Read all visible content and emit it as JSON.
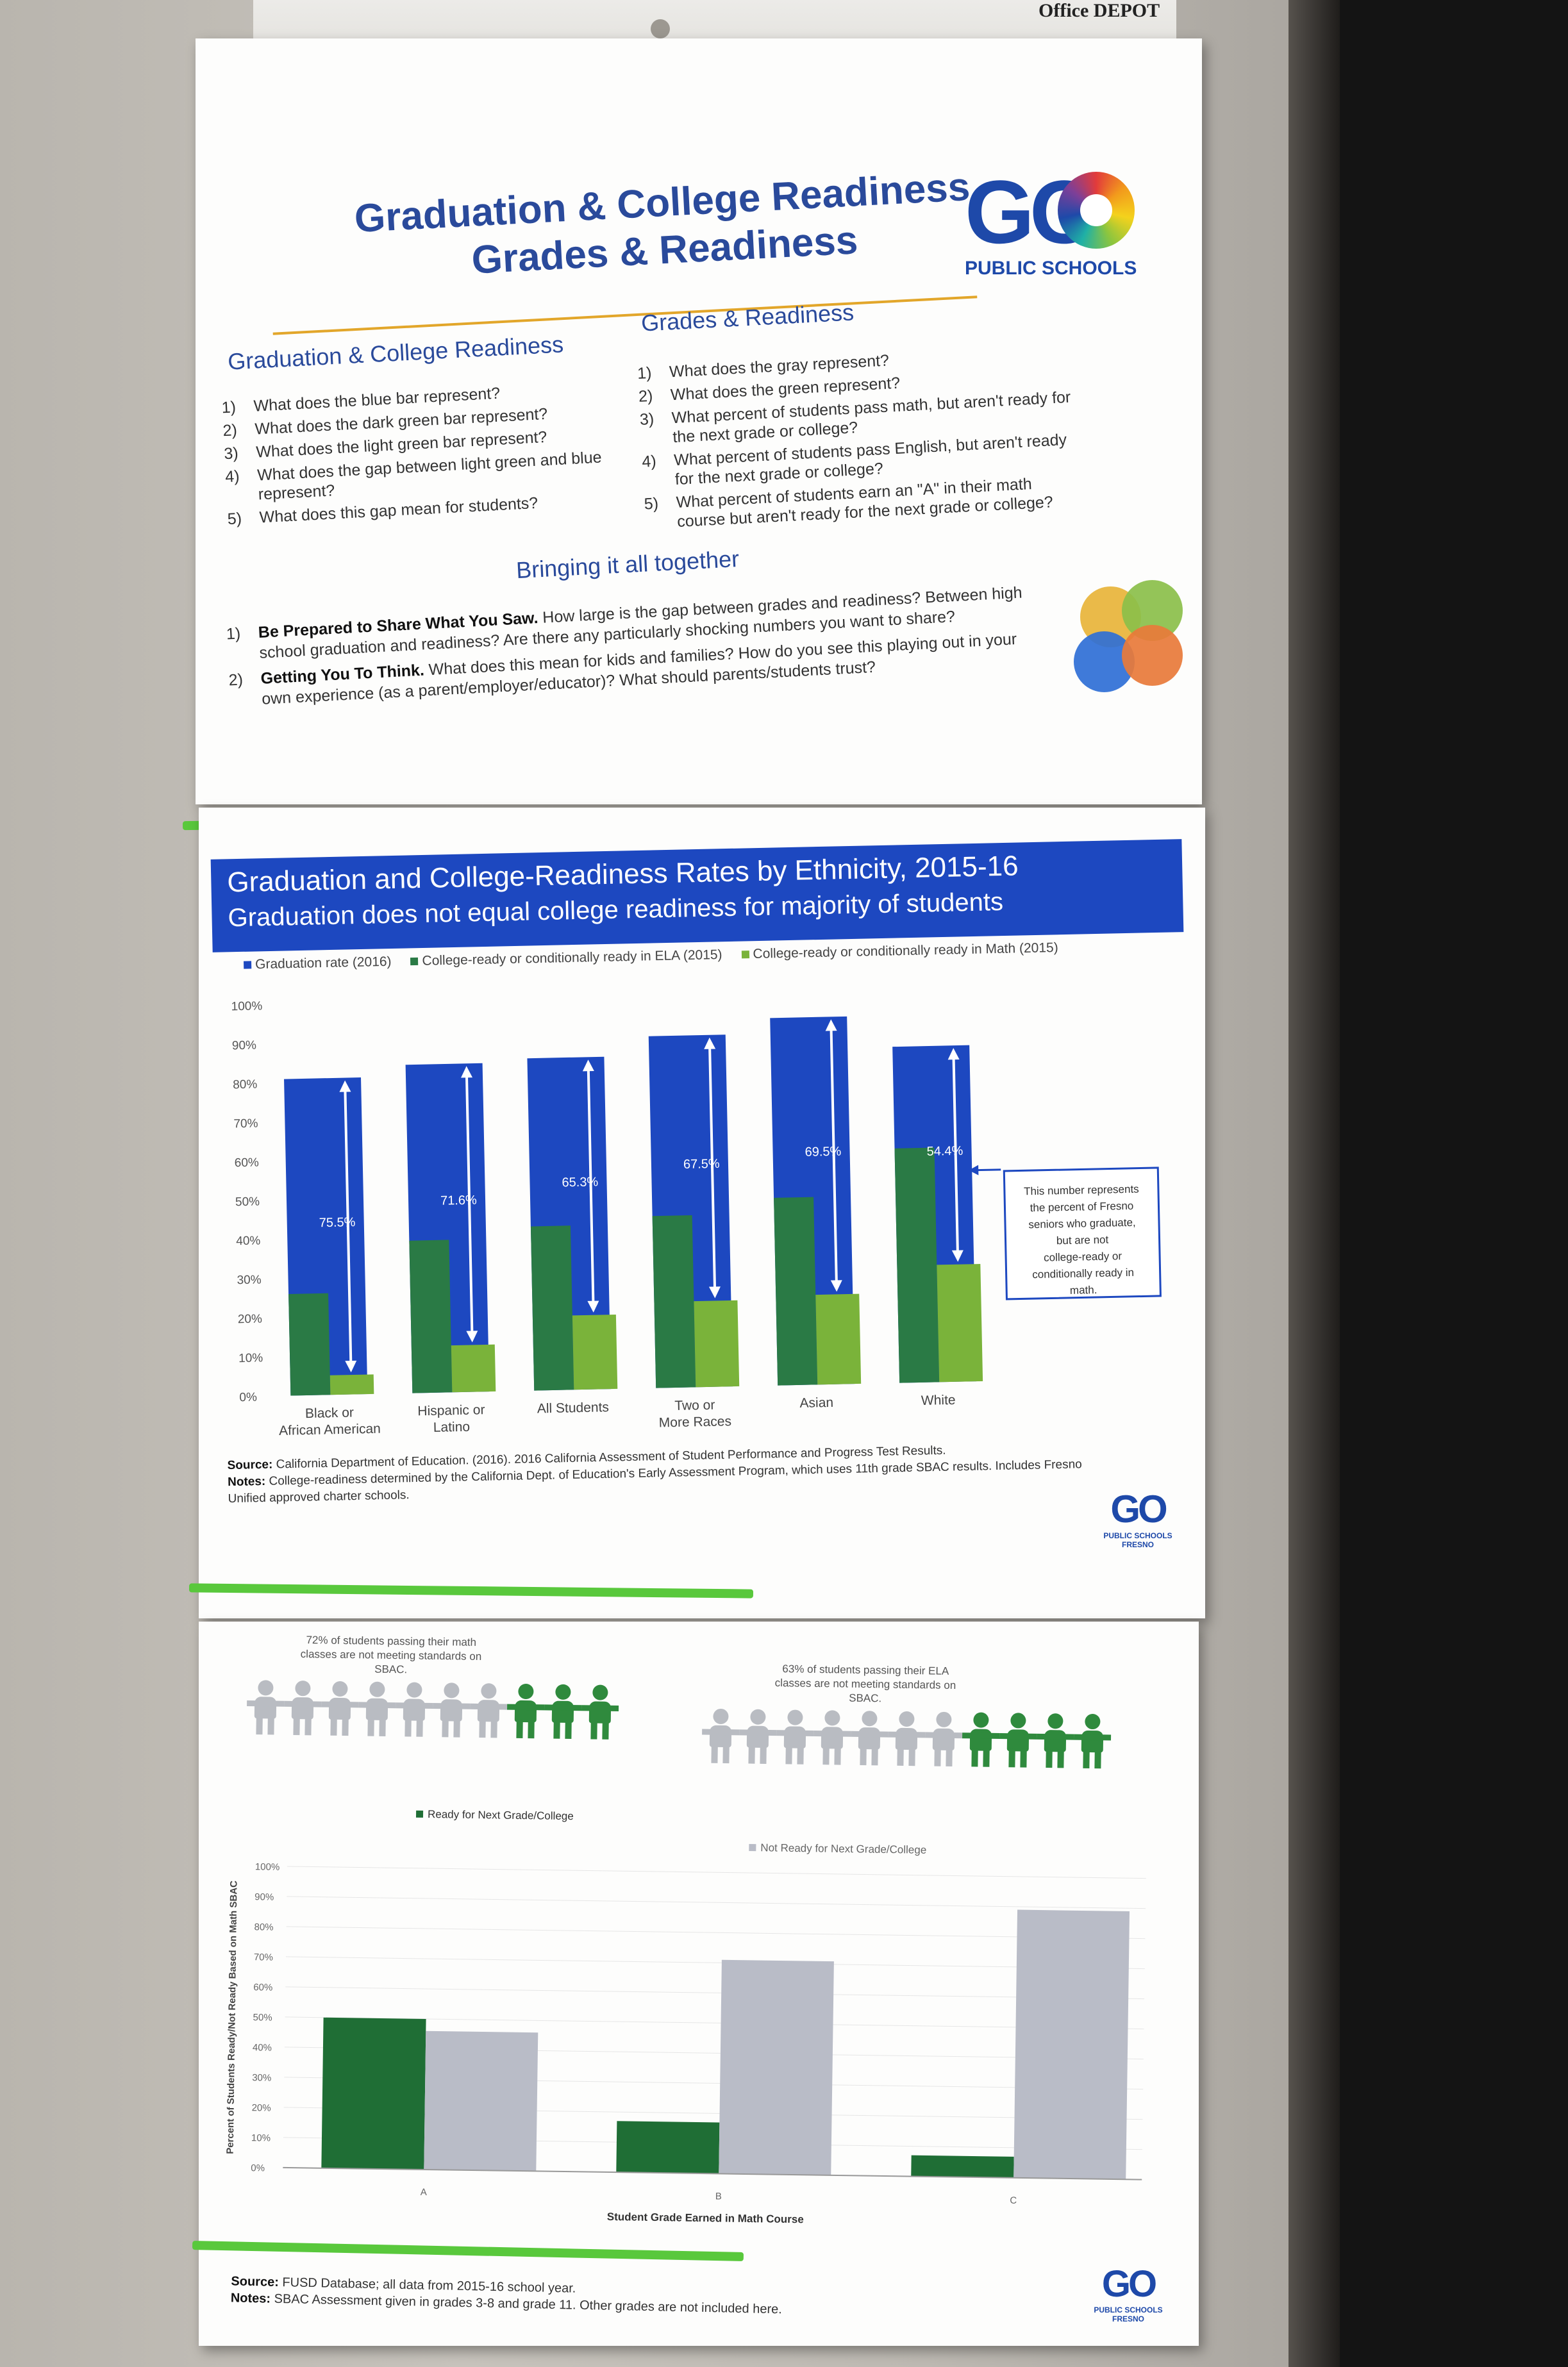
{
  "sleeve": {
    "brand": "Office DEPOT"
  },
  "poster1": {
    "title_line1": "Graduation & College Readiness",
    "title_line2": "Grades & Readiness",
    "logo": {
      "text": "GO",
      "sub": "PUBLIC SCHOOLS"
    },
    "section_left": {
      "heading": "Graduation & College Readiness",
      "questions": [
        "What does the blue bar represent?",
        "What does the dark green bar represent?",
        "What does the light green bar represent?",
        "What does the gap between light green and blue represent?",
        "What does this gap mean for students?"
      ]
    },
    "section_right": {
      "heading": "Grades & Readiness",
      "questions": [
        "What does the gray represent?",
        "What does the green represent?",
        "What percent of students pass math, but aren't ready for the next grade or college?",
        "What percent of students pass English, but aren't ready for the next grade or college?",
        "What percent of students earn an \"A\" in their math course but aren't ready for the next grade or college?"
      ]
    },
    "together": {
      "heading": "Bringing it all together",
      "items": [
        {
          "bold": "Be Prepared to Share What You Saw.",
          "text": " How large is the gap between grades and readiness? Between high school graduation and readiness? Are there any particularly shocking numbers you want to share?"
        },
        {
          "bold": "Getting You To Think.",
          "text": " What does this mean for kids and families? How do you see this playing out in your own experience (as a parent/employer/educator)? What should parents/students trust?"
        }
      ]
    },
    "dot_colors": [
      "#e8b43a",
      "#8bbf4a",
      "#2f6fd6",
      "#e8793a"
    ]
  },
  "poster2": {
    "title": "Graduation and College-Readiness Rates by Ethnicity, 2015-16",
    "subtitle": "Graduation does not equal college readiness for majority of students",
    "legend": [
      {
        "label": "Graduation rate (2016)",
        "color": "#1d48c0"
      },
      {
        "label": "College-ready or conditionally ready in ELA (2015)",
        "color": "#2a7a45"
      },
      {
        "label": "College-ready or conditionally ready in Math (2015)",
        "color": "#7ab33a"
      }
    ],
    "annotation": "This number represents the percent of Fresno seniors who graduate, but are not college-ready or conditionally ready in math.",
    "source": "California Department of Education. (2016). 2016 California Assessment of Student Performance and Progress Test Results.",
    "source_label": "Source:",
    "notes": "College-readiness determined by the California Dept. of Education's Early Assessment Program, which uses 11th grade SBAC results. Includes Fresno Unified approved charter schools.",
    "notes_label": "Notes:",
    "logo": {
      "text": "GO",
      "sub": "PUBLIC SCHOOLS FRESNO"
    }
  },
  "poster3": {
    "note_math": "72% of students passing their math classes are not meeting standards on SBAC.",
    "note_ela": "63% of students passing their ELA classes are not meeting standards on SBAC.",
    "people_math": {
      "gray": 7,
      "green": 3
    },
    "people_ela": {
      "gray": 7,
      "green": 4
    },
    "source_label": "Source:",
    "source": "FUSD Database; all data from 2015-16 school year.",
    "notes_label": "Notes:",
    "notes": "SBAC Assessment given in grades 3-8 and grade 11. Other grades are not included here.",
    "logo": {
      "text": "GO",
      "sub": "PUBLIC SCHOOLS FRESNO"
    }
  },
  "chart_data": [
    {
      "type": "bar",
      "title": "Graduation and College-Readiness Rates by Ethnicity, 2015-16",
      "subtitle": "Graduation does not equal college readiness for majority of students",
      "categories": [
        "Black or African American",
        "Hispanic or Latino",
        "All Students",
        "Two or More Races",
        "Asian",
        "White"
      ],
      "series": [
        {
          "name": "Graduation rate (2016)",
          "values": [
            81,
            84,
            85,
            90,
            94,
            86
          ]
        },
        {
          "name": "College-ready or conditionally ready in ELA (2015)",
          "values": [
            26,
            39,
            42,
            44,
            48,
            60
          ]
        },
        {
          "name": "College-ready or conditionally ready in Math (2015)",
          "values": [
            5,
            12,
            19,
            22,
            23,
            30
          ]
        }
      ],
      "gap_labels": [
        "75.5%",
        "71.6%",
        "65.3%",
        "67.5%",
        "69.5%",
        "54.4%"
      ],
      "yticks": [
        "0%",
        "10%",
        "20%",
        "30%",
        "40%",
        "50%",
        "60%",
        "70%",
        "80%",
        "90%",
        "100%"
      ],
      "ylim": [
        0,
        100
      ],
      "legend_position": "top"
    },
    {
      "type": "bar",
      "categories": [
        "A",
        "B",
        "C"
      ],
      "series": [
        {
          "name": "Ready for Next Grade/College",
          "values": [
            50,
            17,
            7
          ]
        },
        {
          "name": "Not Ready for Next Grade/College",
          "values": [
            46,
            71,
            89
          ]
        }
      ],
      "xlabel": "Student Grade Earned in Math Course",
      "ylabel": "Percent of Students Ready/Not Ready Based on Math SBAC",
      "yticks": [
        "0%",
        "10%",
        "20%",
        "30%",
        "40%",
        "50%",
        "60%",
        "70%",
        "80%",
        "90%",
        "100%"
      ],
      "ylim": [
        0,
        100
      ],
      "grid": true,
      "colors": [
        "#1f6e35",
        "#b9bcc7"
      ]
    }
  ]
}
